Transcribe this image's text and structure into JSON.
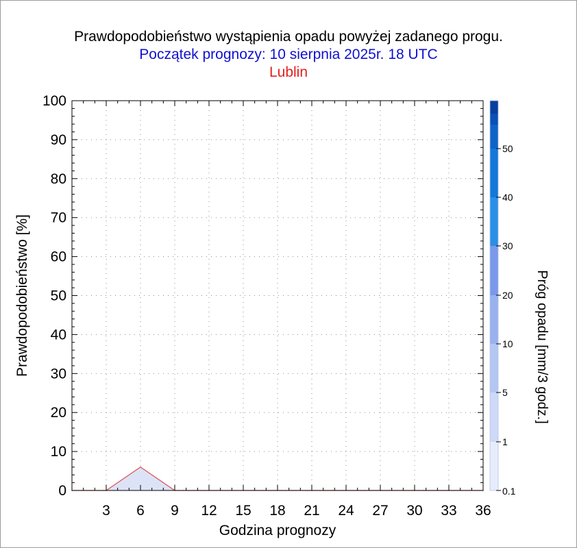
{
  "header": {
    "title": "Prawdopodobieństwo wystąpienia opadu powyżej zadanego progu.",
    "subtitle": "Początek prognozy: 10 sierpnia 2025r. 18 UTC",
    "station": "Lublin"
  },
  "chart_data": {
    "type": "area",
    "title": "Prawdopodobieństwo wystąpienia opadu powyżej zadanego progu.",
    "subtitle": "Początek prognozy: 10 sierpnia 2025r. 18 UTC",
    "location": "Lublin",
    "xlabel": "Godzina prognozy",
    "ylabel": "Prawdopodobieństwo [%]",
    "xlim": [
      0,
      36
    ],
    "ylim": [
      0,
      100
    ],
    "x_ticks": [
      3,
      6,
      9,
      12,
      15,
      18,
      21,
      24,
      27,
      30,
      33,
      36
    ],
    "y_ticks": [
      0,
      10,
      20,
      30,
      40,
      50,
      60,
      70,
      80,
      90,
      100
    ],
    "grid": true,
    "series": [
      {
        "threshold": 0.1,
        "x": [
          0,
          3,
          6,
          9,
          12,
          15,
          18,
          21,
          24,
          27,
          30,
          33,
          36
        ],
        "values": [
          0,
          0,
          6,
          0,
          0,
          0,
          0,
          0,
          0,
          0,
          0,
          0,
          0
        ],
        "fill_color": "#dde3f7",
        "line_color": "#e05050"
      }
    ],
    "colorbar": {
      "label": "Próg opadu [mm/3 godz.]",
      "tick_labels": [
        "0.1",
        "1",
        "5",
        "10",
        "20",
        "30",
        "40",
        "50"
      ],
      "colors": [
        "#e6ecfb",
        "#cdd9f6",
        "#b4c6f2",
        "#99b1ee",
        "#7a99ea",
        "#2a8fe6",
        "#1477da",
        "#0e63c8",
        "#0b50b6",
        "#083f9e"
      ]
    }
  }
}
